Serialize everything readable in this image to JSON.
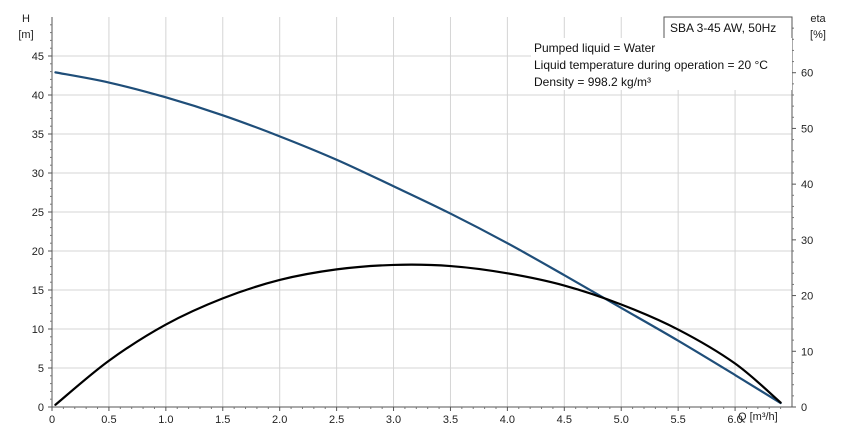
{
  "chart_data": {
    "type": "line",
    "title": "SBA 3-45 AW, 50Hz",
    "info_lines": [
      "Pumped liquid = Water",
      "Liquid temperature during operation = 20 °C",
      "Density = 998.2 kg/m³"
    ],
    "x_axis": {
      "label": "Q [m³/h]",
      "ticks": [
        "0",
        "0.5",
        "1.0",
        "1.5",
        "2.0",
        "2.5",
        "3.0",
        "3.5",
        "4.0",
        "4.5",
        "5.0",
        "5.5",
        "6.0"
      ],
      "range": [
        0,
        6.5
      ]
    },
    "y_left": {
      "label_top": "H",
      "label_unit": "[m]",
      "ticks": [
        "0",
        "5",
        "10",
        "15",
        "20",
        "25",
        "30",
        "35",
        "40",
        "45"
      ],
      "range": [
        0,
        50
      ]
    },
    "y_right": {
      "label_top": "eta",
      "label_unit": "[%]",
      "ticks": [
        "0",
        "10",
        "20",
        "30",
        "40",
        "50",
        "60"
      ],
      "range": [
        0,
        70
      ]
    },
    "grid": true,
    "series": [
      {
        "axis": "left",
        "color": "#1f4e79",
        "x": [
          0.03,
          0.5,
          1.0,
          1.5,
          2.0,
          2.5,
          3.0,
          3.5,
          4.0,
          4.5,
          5.0,
          5.5,
          6.0,
          6.4
        ],
        "y": [
          42.9,
          41.6,
          39.7,
          37.4,
          34.7,
          31.7,
          28.3,
          24.8,
          21.0,
          16.9,
          12.7,
          8.5,
          4.1,
          0.5
        ]
      },
      {
        "axis": "right",
        "color": "#000000",
        "x": [
          0.03,
          0.5,
          1.0,
          1.5,
          2.0,
          2.5,
          3.0,
          3.5,
          4.0,
          4.5,
          5.0,
          5.5,
          6.0,
          6.4
        ],
        "y": [
          0.4,
          8.3,
          14.8,
          19.5,
          22.8,
          24.7,
          25.5,
          25.3,
          24.0,
          21.8,
          18.4,
          13.9,
          7.8,
          0.8
        ]
      }
    ]
  }
}
